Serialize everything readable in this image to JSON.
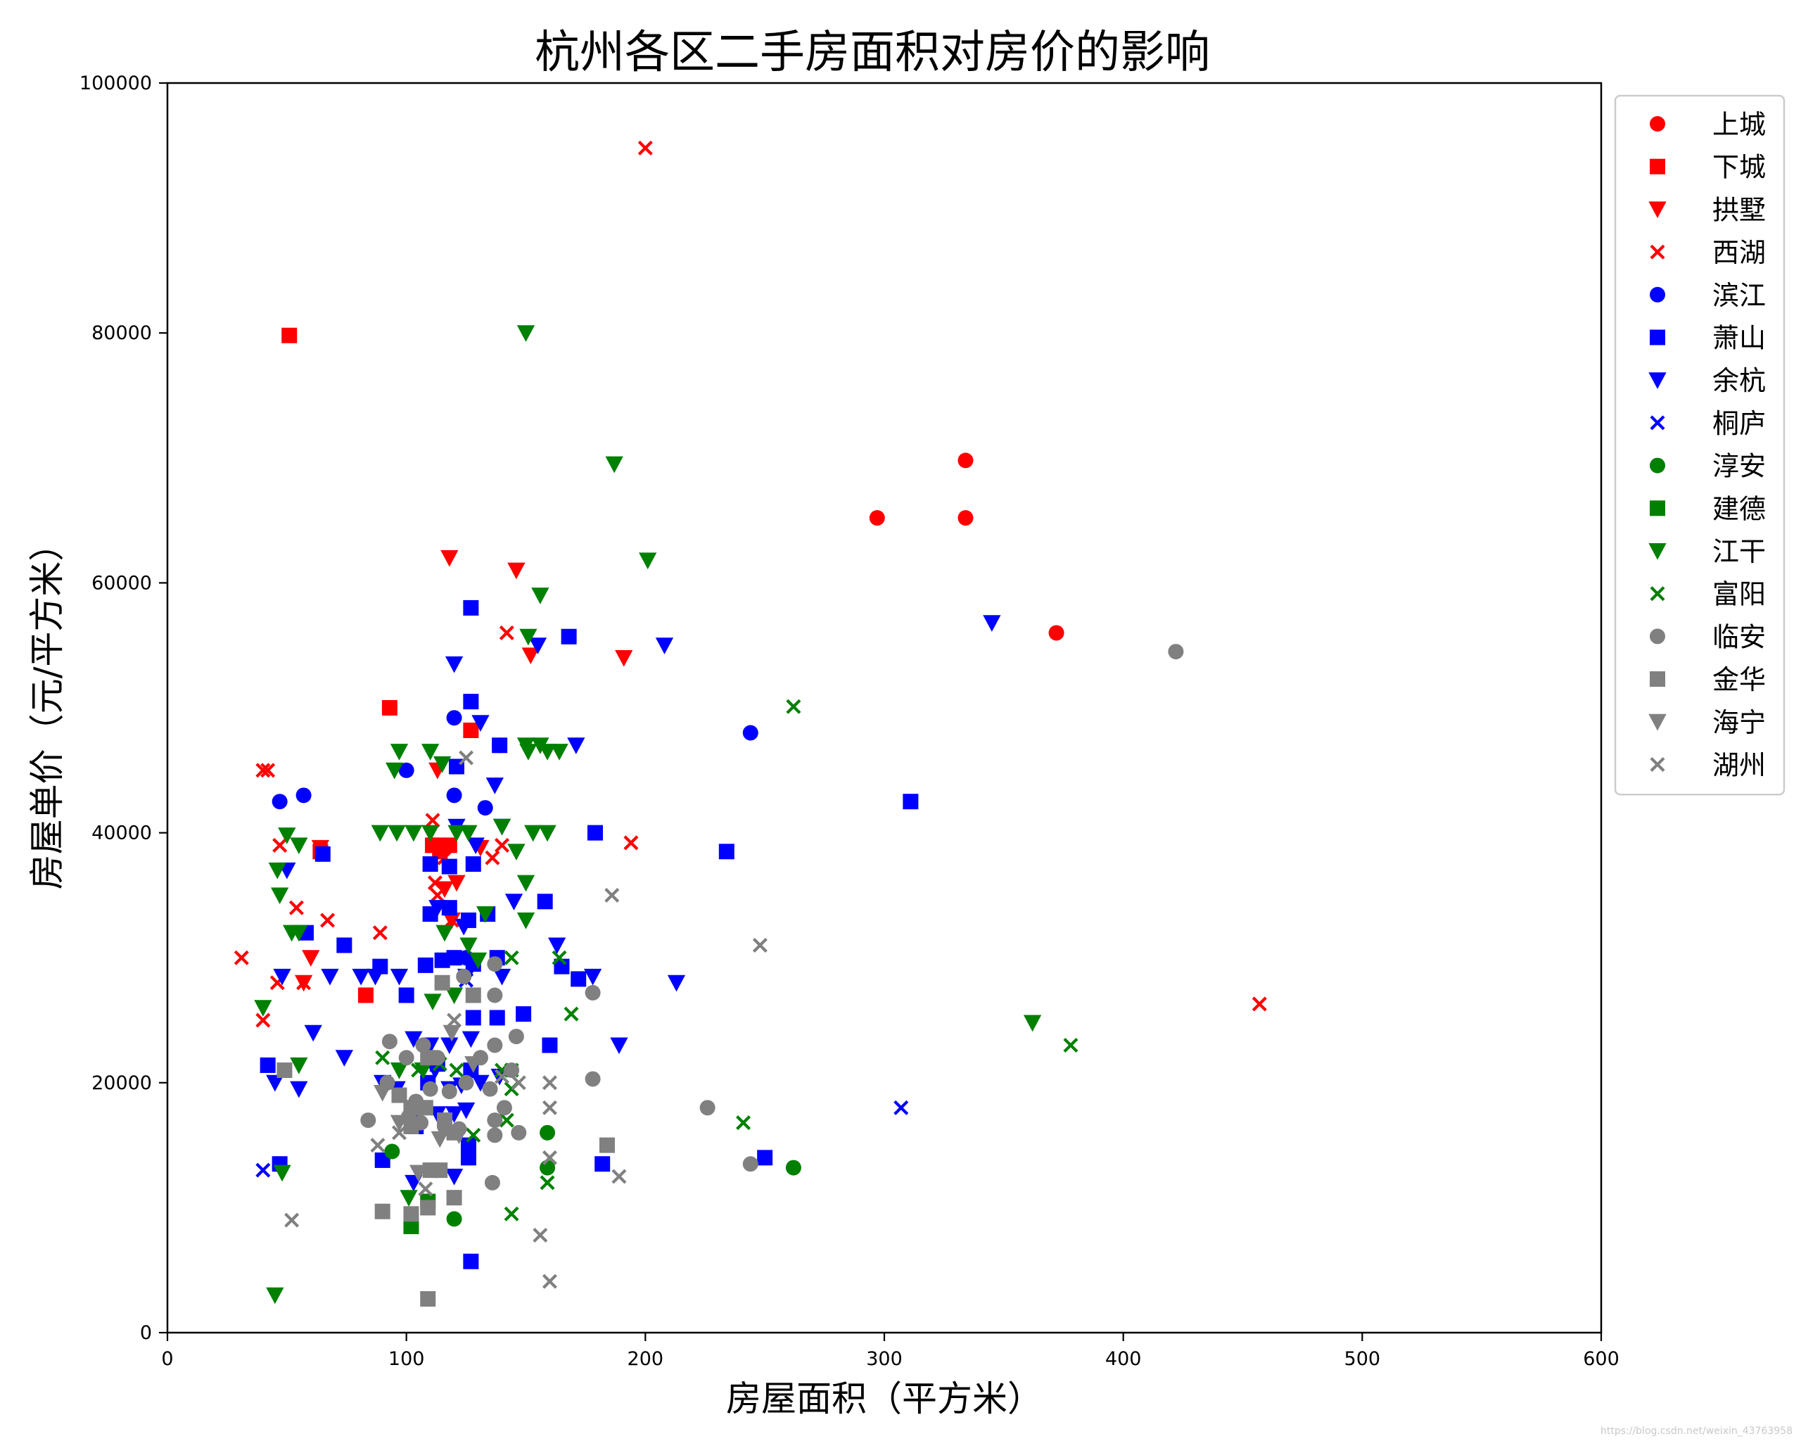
{
  "chart_data": {
    "type": "scatter",
    "title": "杭州各区二手房面积对房价的影响",
    "xlabel": "房屋面积（平方米）",
    "ylabel": "房屋单价（元/平方米）",
    "xlim": [
      0,
      600
    ],
    "ylim": [
      0,
      100000
    ],
    "xticks": [
      0,
      100,
      200,
      300,
      400,
      500,
      600
    ],
    "yticks": [
      0,
      20000,
      40000,
      60000,
      80000,
      100000
    ],
    "grid": false,
    "legend_position": "outside-right-top",
    "watermark": "https://blog.csdn.net/weixin_43763958",
    "series": [
      {
        "name": "上城",
        "color": "#ff0000",
        "marker": "circle",
        "points": [
          [
            297,
            65200
          ],
          [
            334,
            69800
          ],
          [
            334,
            65200
          ],
          [
            372,
            56000
          ]
        ]
      },
      {
        "name": "下城",
        "color": "#ff0000",
        "marker": "square",
        "points": [
          [
            51,
            79800
          ],
          [
            93,
            50000
          ],
          [
            127,
            48200
          ],
          [
            83,
            27000
          ],
          [
            64,
            38500
          ],
          [
            118,
            39000
          ],
          [
            111,
            39000
          ],
          [
            114,
            38500
          ]
        ]
      },
      {
        "name": "拱墅",
        "color": "#ff0000",
        "marker": "triangle_down",
        "points": [
          [
            118,
            62000
          ],
          [
            146,
            61000
          ],
          [
            152,
            54200
          ],
          [
            191,
            54000
          ],
          [
            113,
            45000
          ],
          [
            64,
            38800
          ],
          [
            60,
            30000
          ],
          [
            57,
            28000
          ],
          [
            121,
            36000
          ],
          [
            116,
            35500
          ],
          [
            131,
            38800
          ],
          [
            119,
            33000
          ],
          [
            113,
            39000
          ]
        ]
      },
      {
        "name": "西湖",
        "color": "#ff0000",
        "marker": "x",
        "points": [
          [
            200,
            94800
          ],
          [
            457,
            26300
          ],
          [
            40,
            45000
          ],
          [
            42,
            45000
          ],
          [
            47,
            39000
          ],
          [
            54,
            34000
          ],
          [
            67,
            33000
          ],
          [
            31,
            30000
          ],
          [
            40,
            25000
          ],
          [
            46,
            28000
          ],
          [
            57,
            28000
          ],
          [
            89,
            32000
          ],
          [
            142,
            56000
          ],
          [
            194,
            39200
          ],
          [
            111,
            41000
          ],
          [
            112,
            36000
          ],
          [
            116,
            38000
          ],
          [
            136,
            38000
          ],
          [
            140,
            39000
          ],
          [
            113,
            35000
          ],
          [
            119,
            33000
          ]
        ]
      },
      {
        "name": "滨江",
        "color": "#0000ff",
        "marker": "circle",
        "points": [
          [
            47,
            42500
          ],
          [
            57,
            43000
          ],
          [
            100,
            45000
          ],
          [
            120,
            49200
          ],
          [
            120,
            43000
          ],
          [
            133,
            42000
          ],
          [
            139,
            47000
          ],
          [
            244,
            48000
          ],
          [
            125,
            30000
          ]
        ]
      },
      {
        "name": "萧山",
        "color": "#0000ff",
        "marker": "square",
        "points": [
          [
            127,
            58000
          ],
          [
            168,
            55700
          ],
          [
            127,
            50500
          ],
          [
            121,
            45300
          ],
          [
            139,
            47000
          ],
          [
            311,
            42500
          ],
          [
            234,
            38500
          ],
          [
            179,
            40000
          ],
          [
            65,
            38300
          ],
          [
            110,
            37500
          ],
          [
            118,
            37300
          ],
          [
            128,
            37500
          ],
          [
            158,
            34500
          ],
          [
            58,
            32000
          ],
          [
            74,
            31000
          ],
          [
            110,
            33500
          ],
          [
            118,
            34000
          ],
          [
            126,
            33000
          ],
          [
            134,
            33500
          ],
          [
            165,
            29300
          ],
          [
            172,
            28300
          ],
          [
            89,
            29300
          ],
          [
            108,
            29400
          ],
          [
            115,
            29800
          ],
          [
            120,
            30000
          ],
          [
            128,
            29500
          ],
          [
            138,
            30000
          ],
          [
            100,
            27000
          ],
          [
            128,
            25200
          ],
          [
            138,
            25200
          ],
          [
            149,
            25500
          ],
          [
            160,
            23000
          ],
          [
            127,
            21000
          ],
          [
            42,
            21400
          ],
          [
            47,
            13500
          ],
          [
            90,
            13800
          ],
          [
            126,
            14000
          ],
          [
            126,
            15000
          ],
          [
            182,
            13500
          ],
          [
            250,
            14000
          ],
          [
            127,
            5700
          ],
          [
            104,
            16500
          ],
          [
            109,
            20000
          ],
          [
            113,
            21500
          ]
        ]
      },
      {
        "name": "余杭",
        "color": "#0000ff",
        "marker": "triangle_down",
        "points": [
          [
            345,
            56800
          ],
          [
            208,
            55000
          ],
          [
            155,
            55000
          ],
          [
            120,
            53500
          ],
          [
            171,
            47000
          ],
          [
            131,
            48800
          ],
          [
            137,
            43800
          ],
          [
            50,
            37000
          ],
          [
            121,
            40500
          ],
          [
            140,
            40500
          ],
          [
            129,
            39000
          ],
          [
            113,
            34000
          ],
          [
            124,
            32500
          ],
          [
            145,
            34500
          ],
          [
            68,
            28500
          ],
          [
            81,
            28500
          ],
          [
            87,
            28500
          ],
          [
            97,
            28500
          ],
          [
            125,
            28500
          ],
          [
            140,
            28500
          ],
          [
            163,
            31000
          ],
          [
            178,
            28500
          ],
          [
            213,
            28000
          ],
          [
            48,
            28500
          ],
          [
            61,
            24000
          ],
          [
            74,
            22000
          ],
          [
            103,
            23500
          ],
          [
            110,
            23000
          ],
          [
            118,
            23000
          ],
          [
            127,
            23500
          ],
          [
            189,
            23000
          ],
          [
            45,
            20000
          ],
          [
            55,
            19500
          ],
          [
            90,
            20000
          ],
          [
            96,
            19500
          ],
          [
            112,
            21000
          ],
          [
            118,
            19500
          ],
          [
            123,
            19800
          ],
          [
            131,
            20000
          ],
          [
            139,
            20500
          ],
          [
            102,
            16800
          ],
          [
            113,
            17500
          ],
          [
            120,
            17500
          ],
          [
            125,
            17800
          ],
          [
            120,
            12500
          ],
          [
            103,
            12000
          ]
        ]
      },
      {
        "name": "桐庐",
        "color": "#0000ff",
        "marker": "x",
        "points": [
          [
            307,
            18000
          ],
          [
            40,
            13000
          ],
          [
            125,
            28200
          ]
        ]
      },
      {
        "name": "淳安",
        "color": "#008000",
        "marker": "circle",
        "points": [
          [
            262,
            13200
          ],
          [
            94,
            14500
          ],
          [
            120,
            9100
          ],
          [
            159,
            13200
          ],
          [
            159,
            16000
          ]
        ]
      },
      {
        "name": "建德",
        "color": "#008000",
        "marker": "square",
        "points": [
          [
            102,
            8500
          ],
          [
            109,
            10500
          ]
        ]
      },
      {
        "name": "江干",
        "color": "#008000",
        "marker": "triangle_down",
        "points": [
          [
            150,
            80000
          ],
          [
            187,
            69500
          ],
          [
            201,
            61800
          ],
          [
            156,
            59000
          ],
          [
            151,
            55700
          ],
          [
            151,
            46500
          ],
          [
            159,
            46500
          ],
          [
            97,
            46500
          ],
          [
            110,
            46500
          ],
          [
            115,
            45500
          ],
          [
            95,
            45000
          ],
          [
            164,
            46500
          ],
          [
            150,
            47000
          ],
          [
            156,
            47000
          ],
          [
            89,
            40000
          ],
          [
            96,
            40000
          ],
          [
            103,
            40000
          ],
          [
            110,
            40000
          ],
          [
            121,
            40000
          ],
          [
            126,
            40000
          ],
          [
            140,
            40500
          ],
          [
            153,
            40000
          ],
          [
            159,
            40000
          ],
          [
            50,
            39800
          ],
          [
            55,
            39000
          ],
          [
            46,
            37000
          ],
          [
            47,
            35000
          ],
          [
            52,
            32000
          ],
          [
            55,
            32000
          ],
          [
            116,
            32000
          ],
          [
            126,
            31000
          ],
          [
            133,
            33500
          ],
          [
            150,
            36000
          ],
          [
            150,
            33000
          ],
          [
            146,
            38500
          ],
          [
            362,
            24800
          ],
          [
            40,
            26000
          ],
          [
            55,
            21400
          ],
          [
            97,
            21000
          ],
          [
            107,
            21000
          ],
          [
            111,
            26500
          ],
          [
            120,
            27000
          ],
          [
            130,
            29800
          ],
          [
            48,
            12800
          ],
          [
            45,
            3000
          ],
          [
            101,
            10800
          ]
        ]
      },
      {
        "name": "富阳",
        "color": "#008000",
        "marker": "x",
        "points": [
          [
            262,
            50100
          ],
          [
            378,
            23000
          ],
          [
            241,
            16800
          ],
          [
            144,
            30000
          ],
          [
            164,
            30000
          ],
          [
            169,
            25500
          ],
          [
            90,
            22000
          ],
          [
            105,
            21000
          ],
          [
            114,
            21500
          ],
          [
            121,
            21000
          ],
          [
            140,
            21000
          ],
          [
            144,
            21000
          ],
          [
            144,
            19500
          ],
          [
            142,
            17000
          ],
          [
            159,
            12000
          ],
          [
            144,
            9500
          ],
          [
            128,
            15800
          ]
        ]
      },
      {
        "name": "临安",
        "color": "#808080",
        "marker": "circle",
        "points": [
          [
            422,
            54500
          ],
          [
            226,
            18000
          ],
          [
            244,
            13500
          ],
          [
            137,
            29500
          ],
          [
            137,
            27000
          ],
          [
            178,
            27200
          ],
          [
            124,
            28500
          ],
          [
            146,
            23700
          ],
          [
            178,
            20300
          ],
          [
            84,
            17000
          ],
          [
            92,
            20000
          ],
          [
            93,
            23300
          ],
          [
            100,
            22000
          ],
          [
            107,
            23000
          ],
          [
            113,
            22000
          ],
          [
            131,
            22000
          ],
          [
            137,
            23000
          ],
          [
            144,
            21000
          ],
          [
            104,
            18500
          ],
          [
            110,
            19500
          ],
          [
            118,
            19300
          ],
          [
            125,
            20000
          ],
          [
            135,
            19500
          ],
          [
            101,
            17300
          ],
          [
            106,
            16800
          ],
          [
            116,
            16500
          ],
          [
            122,
            16300
          ],
          [
            137,
            17000
          ],
          [
            141,
            18000
          ],
          [
            147,
            16000
          ],
          [
            136,
            12000
          ],
          [
            137,
            15800
          ]
        ]
      },
      {
        "name": "金华",
        "color": "#808080",
        "marker": "square",
        "points": [
          [
            49,
            21000
          ],
          [
            109,
            2700
          ],
          [
            90,
            9700
          ],
          [
            102,
            9500
          ],
          [
            109,
            10000
          ],
          [
            120,
            10800
          ],
          [
            110,
            13000
          ],
          [
            114,
            13000
          ],
          [
            184,
            15000
          ],
          [
            97,
            19000
          ],
          [
            102,
            18000
          ],
          [
            108,
            18000
          ],
          [
            116,
            17000
          ],
          [
            120,
            16000
          ],
          [
            102,
            16500
          ],
          [
            109,
            22000
          ],
          [
            115,
            28000
          ],
          [
            128,
            27000
          ]
        ]
      },
      {
        "name": "海宁",
        "color": "#808080",
        "marker": "triangle_down",
        "points": [
          [
            90,
            19200
          ],
          [
            97,
            16800
          ],
          [
            105,
            12800
          ],
          [
            114,
            15500
          ],
          [
            122,
            15800
          ],
          [
            119,
            24000
          ],
          [
            128,
            21500
          ]
        ]
      },
      {
        "name": "湖州",
        "color": "#808080",
        "marker": "x",
        "points": [
          [
            125,
            46000
          ],
          [
            186,
            35000
          ],
          [
            248,
            31000
          ],
          [
            52,
            9000
          ],
          [
            156,
            7800
          ],
          [
            160,
            4100
          ],
          [
            160,
            14000
          ],
          [
            160,
            18000
          ],
          [
            160,
            20000
          ],
          [
            189,
            12500
          ],
          [
            88,
            15000
          ],
          [
            97,
            16000
          ],
          [
            140,
            20500
          ],
          [
            147,
            20000
          ],
          [
            108,
            11500
          ],
          [
            120,
            25000
          ]
        ]
      }
    ]
  }
}
